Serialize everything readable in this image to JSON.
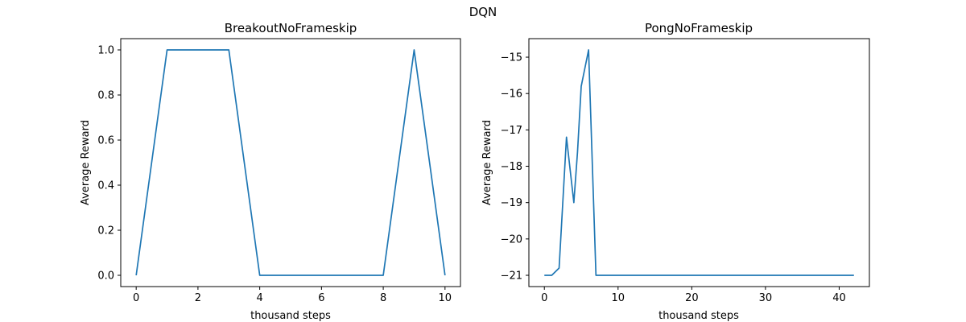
{
  "figure": {
    "suptitle": "DQN"
  },
  "chart_data": [
    {
      "type": "line",
      "title": "BreakoutNoFrameskip",
      "xlabel": "thousand steps",
      "ylabel": "Average Reward",
      "xlim": [
        -0.5,
        10.5
      ],
      "ylim": [
        -0.05,
        1.05
      ],
      "xticks": [
        0,
        2,
        4,
        6,
        8,
        10
      ],
      "yticks": [
        0.0,
        0.2,
        0.4,
        0.6,
        0.8,
        1.0
      ],
      "ytick_decimals": 1,
      "grid": false,
      "color": "#1f77b4",
      "series": [
        {
          "x": [
            0,
            1,
            2,
            3,
            4,
            5,
            6,
            7,
            8,
            9,
            10
          ],
          "y": [
            0,
            1,
            1,
            1,
            0,
            0,
            0,
            0,
            0,
            1,
            0
          ]
        }
      ]
    },
    {
      "type": "line",
      "title": "PongNoFrameskip",
      "xlabel": "thousand steps",
      "ylabel": "Average Reward",
      "xlim": [
        -2.1,
        44.1
      ],
      "ylim": [
        -21.31,
        -14.49
      ],
      "xticks": [
        0,
        10,
        20,
        30,
        40
      ],
      "yticks": [
        -21,
        -20,
        -19,
        -18,
        -17,
        -16,
        -15
      ],
      "ytick_decimals": 0,
      "grid": false,
      "color": "#1f77b4",
      "series": [
        {
          "x": [
            0,
            1,
            2,
            3,
            4,
            4.5,
            5,
            6,
            7,
            8,
            10,
            15,
            20,
            25,
            30,
            35,
            40,
            42
          ],
          "y": [
            -21,
            -21,
            -20.8,
            -17.2,
            -19,
            -17.6,
            -15.8,
            -14.8,
            -21,
            -21,
            -21,
            -21,
            -21,
            -21,
            -21,
            -21,
            -21,
            -21
          ]
        }
      ]
    }
  ]
}
